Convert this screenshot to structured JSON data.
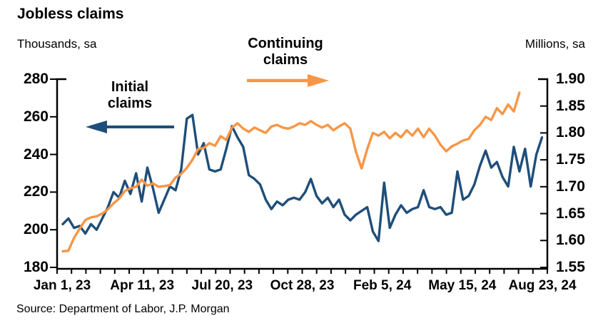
{
  "title": "Jobless claims",
  "left_axis_title": "Thousands, sa",
  "right_axis_title": "Millions, sa",
  "source": "Source: Department of Labor, J.P. Morgan",
  "annotations": {
    "initial": {
      "line1": "Initial",
      "line2": "claims"
    },
    "continuing": {
      "line1": "Continuing",
      "line2": "claims"
    }
  },
  "colors": {
    "initial_claims": "#1F4E79",
    "continuing_claims": "#F79646",
    "axis": "#000000"
  },
  "chart_data": {
    "type": "line",
    "title": "Jobless claims",
    "x_tick_labels": [
      "Jan 1, 23",
      "Apr 11, 23",
      "Jul 20, 23",
      "Oct 28, 23",
      "Feb 5, 24",
      "May 15, 24",
      "Aug 23, 24"
    ],
    "left_axis": {
      "label": "Thousands, sa",
      "tick_labels": [
        "280",
        "260",
        "240",
        "220",
        "200",
        "180"
      ],
      "min": 180,
      "max": 280
    },
    "right_axis": {
      "label": "Millions, sa",
      "tick_labels": [
        "1.90",
        "1.85",
        "1.80",
        "1.75",
        "1.70",
        "1.65",
        "1.60",
        "1.55"
      ],
      "min": 1.55,
      "max": 1.9
    },
    "grid": false,
    "series": [
      {
        "name": "Initial claims",
        "axis": "left",
        "color": "#1F4E79",
        "values": [
          203,
          206,
          201,
          202,
          198,
          203,
          200,
          206,
          212,
          220,
          217,
          226,
          219,
          230,
          215,
          233,
          222,
          209,
          216,
          223,
          221,
          232,
          259,
          261,
          240,
          246,
          232,
          231,
          232,
          243,
          255,
          249,
          244,
          229,
          227,
          224,
          216,
          211,
          215,
          213,
          216,
          217,
          216,
          220,
          227,
          218,
          214,
          217,
          212,
          216,
          208,
          205,
          208,
          210,
          212,
          199,
          194,
          225,
          201,
          208,
          213,
          209,
          211,
          212,
          221,
          212,
          211,
          212,
          208,
          209,
          231,
          216,
          218,
          224,
          234,
          242,
          233,
          236,
          228,
          223,
          244,
          231,
          243,
          223,
          240,
          249
        ]
      },
      {
        "name": "Continuing claims",
        "axis": "right",
        "color": "#F79646",
        "values": [
          1.58,
          1.581,
          1.605,
          1.622,
          1.638,
          1.643,
          1.645,
          1.65,
          1.658,
          1.669,
          1.678,
          1.692,
          1.697,
          1.7,
          1.713,
          1.702,
          1.706,
          1.7,
          1.701,
          1.703,
          1.717,
          1.724,
          1.735,
          1.75,
          1.77,
          1.772,
          1.781,
          1.776,
          1.794,
          1.787,
          1.81,
          1.818,
          1.808,
          1.802,
          1.81,
          1.805,
          1.8,
          1.812,
          1.815,
          1.81,
          1.808,
          1.812,
          1.818,
          1.815,
          1.822,
          1.815,
          1.81,
          1.815,
          1.805,
          1.812,
          1.818,
          1.808,
          1.765,
          1.734,
          1.77,
          1.8,
          1.795,
          1.802,
          1.79,
          1.8,
          1.792,
          1.805,
          1.795,
          1.808,
          1.792,
          1.808,
          1.795,
          1.778,
          1.766,
          1.775,
          1.78,
          1.786,
          1.789,
          1.805,
          1.815,
          1.83,
          1.824,
          1.846,
          1.835,
          1.853,
          1.84,
          1.875
        ]
      }
    ]
  }
}
